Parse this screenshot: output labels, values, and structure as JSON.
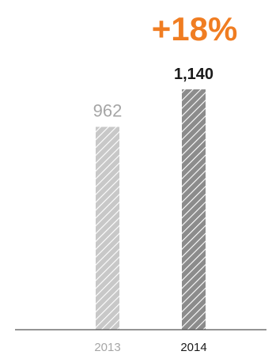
{
  "chart_data": {
    "type": "bar",
    "categories": [
      "2013",
      "2014"
    ],
    "values": [
      962,
      1140
    ],
    "value_labels": [
      "962",
      "1,140"
    ],
    "annotation": "+18%",
    "ylim": [
      0,
      1140
    ],
    "grid": false,
    "colors": {
      "annotation": "#f07d22",
      "bar_2013_fill": "#c8c8c8",
      "bar_2014_fill": "#8c8c8c",
      "stripe": "#ffffff",
      "label_2013": "#a6a6a6",
      "label_2014": "#1a1a1a",
      "axis": "#555555"
    }
  }
}
